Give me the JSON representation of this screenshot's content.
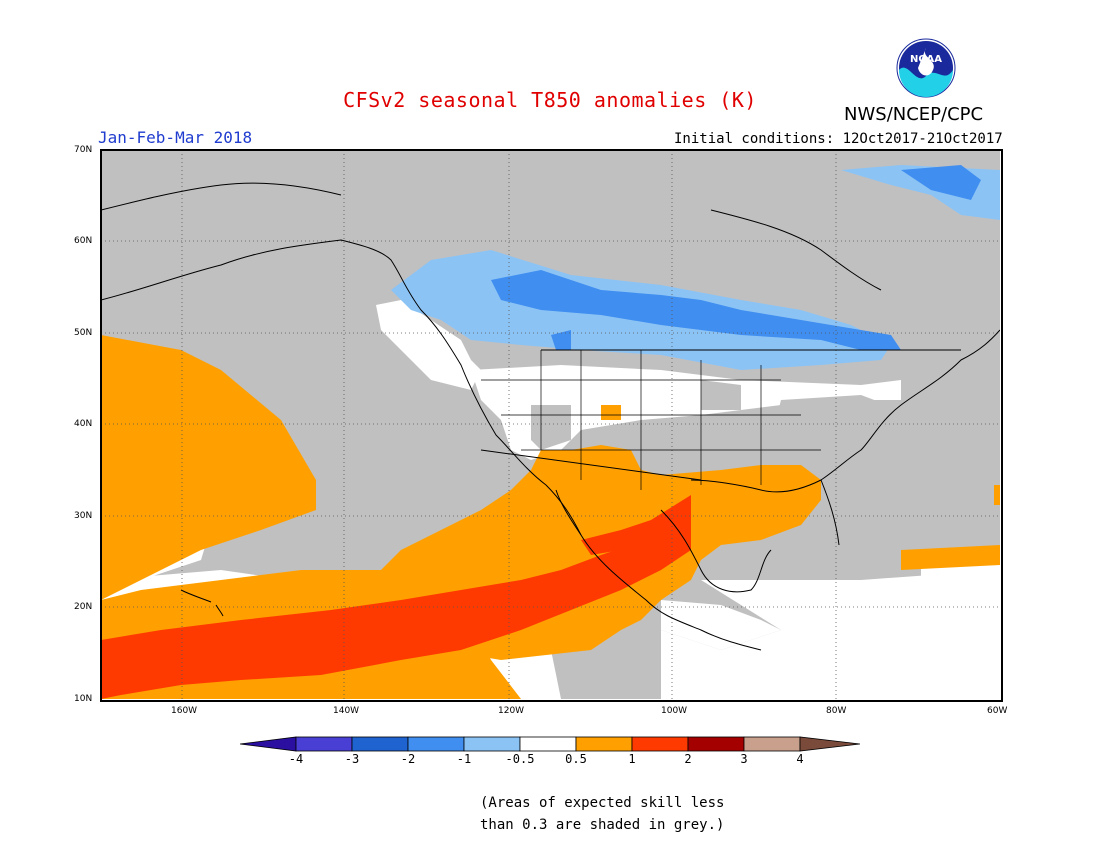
{
  "title": "CFSv2 seasonal T850 anomalies (K)",
  "agency": "NWS/NCEP/CPC",
  "logo_text": "NOAA",
  "period": "Jan-Feb-Mar 2018",
  "initial_conditions": "Initial conditions: 12Oct2017-21Oct2017",
  "lat_labels": [
    "70N",
    "60N",
    "50N",
    "40N",
    "30N",
    "20N",
    "10N"
  ],
  "lon_labels": [
    "160W",
    "140W",
    "120W",
    "100W",
    "80W",
    "60W"
  ],
  "colorbar": {
    "labels": [
      "-4",
      "-3",
      "-2",
      "-1",
      "-0.5",
      "0.5",
      "1",
      "2",
      "3",
      "4"
    ],
    "colors": [
      "#2a0fa0",
      "#4a3fd4",
      "#1e63cf",
      "#3f8ef0",
      "#8cc3f5",
      "#ffffff",
      "#ffa000",
      "#ff3a00",
      "#a50000",
      "#c8a08c",
      "#7a4a3a"
    ]
  },
  "note_line1": "(Areas of expected skill less",
  "note_line2": "than 0.3 are shaded in grey.)"
}
